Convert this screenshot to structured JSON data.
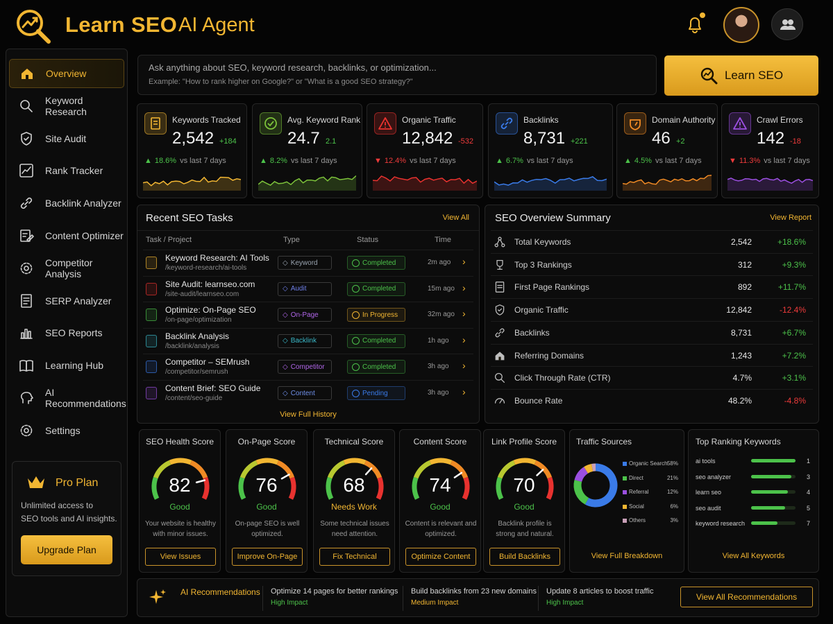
{
  "header": {
    "title_bold": "Learn SEO",
    "title_light": "AI Agent"
  },
  "sidebar": {
    "items": [
      {
        "label": "Overview",
        "icon": "home-icon"
      },
      {
        "label": "Keyword Research",
        "icon": "search-icon"
      },
      {
        "label": "Site Audit",
        "icon": "shield-icon"
      },
      {
        "label": "Rank Tracker",
        "icon": "chart-icon"
      },
      {
        "label": "Backlink Analyzer",
        "icon": "link-icon"
      },
      {
        "label": "Content Optimizer",
        "icon": "edit-icon"
      },
      {
        "label": "Competitor Analysis",
        "icon": "gear-icon"
      },
      {
        "label": "SERP Analyzer",
        "icon": "document-icon"
      },
      {
        "label": "SEO Reports",
        "icon": "report-icon"
      },
      {
        "label": "Learning Hub",
        "icon": "book-icon"
      },
      {
        "label": "AI Recommendations",
        "icon": "brain-icon"
      },
      {
        "label": "Settings",
        "icon": "settings-icon"
      }
    ],
    "pro": {
      "title": "Pro Plan",
      "desc1": "Unlimited access to",
      "desc2": "SEO tools and AI insights.",
      "button": "Upgrade Plan"
    }
  },
  "search": {
    "placeholder": "Ask anything about SEO, keyword research, backlinks, or optimization...",
    "example": "Example: \"How to rank higher on Google?\" or \"What is a good SEO strategy?\"",
    "button": "Learn SEO"
  },
  "stats": [
    {
      "label": "Keywords Tracked",
      "value": "2,542",
      "delta": "+184",
      "pct": "18.6%",
      "up": true,
      "period": "vs last 7 days",
      "color": "#f2b632"
    },
    {
      "label": "Avg. Keyword Rank",
      "value": "24.7",
      "delta": "2.1",
      "pct": "8.2%",
      "up": true,
      "period": "vs last 7 days",
      "color": "#7cc23a"
    },
    {
      "label": "Organic Traffic",
      "value": "12,842",
      "delta": "-532",
      "pct": "12.4%",
      "up": false,
      "period": "vs last 7 days",
      "color": "#e8322f"
    },
    {
      "label": "Backlinks",
      "value": "8,731",
      "delta": "+221",
      "pct": "6.7%",
      "up": true,
      "period": "vs last 7 days",
      "color": "#3a7be8"
    },
    {
      "label": "Domain Authority",
      "value": "46",
      "delta": "+2",
      "pct": "4.5%",
      "up": true,
      "period": "vs last 7 days",
      "color": "#f08a24"
    },
    {
      "label": "Crawl Errors",
      "value": "142",
      "delta": "-18",
      "pct": "11.3%",
      "up": false,
      "period": "vs last 7 days",
      "color": "#9b4fe0"
    }
  ],
  "tasks": {
    "title": "Recent SEO Tasks",
    "view_all": "View All",
    "headers": {
      "task": "Task / Project",
      "type": "Type",
      "status": "Status",
      "time": "Time"
    },
    "rows": [
      {
        "name": "Keyword Research: AI Tools",
        "path": "/keyword-research/ai-tools",
        "type": "Keyword",
        "status": "Completed",
        "time": "2m ago",
        "color": "#f2b632"
      },
      {
        "name": "Site Audit: learnseo.com",
        "path": "/site-audit/learnseo.com",
        "type": "Audit",
        "status": "Completed",
        "time": "15m ago",
        "color": "#e8322f"
      },
      {
        "name": "Optimize: On-Page SEO",
        "path": "/on-page/optimization",
        "type": "On-Page",
        "status": "In Progress",
        "time": "32m ago",
        "color": "#4cc24a"
      },
      {
        "name": "Backlink Analysis",
        "path": "/backlink/analysis",
        "type": "Backlink",
        "status": "Completed",
        "time": "1h ago",
        "color": "#3ab8c8"
      },
      {
        "name": "Competitor – SEMrush",
        "path": "/competitor/semrush",
        "type": "Competitor",
        "status": "Completed",
        "time": "3h ago",
        "color": "#3a7be8"
      },
      {
        "name": "Content Brief: SEO Guide",
        "path": "/content/seo-guide",
        "type": "Content",
        "status": "Pending",
        "time": "3h ago",
        "color": "#9b4fe0"
      }
    ],
    "history": "View Full History"
  },
  "summary": {
    "title": "SEO Overview Summary",
    "view": "View Report",
    "rows": [
      {
        "label": "Total Keywords",
        "value": "2,542",
        "change": "+18.6%",
        "up": true,
        "icon": "network-icon"
      },
      {
        "label": "Top 3 Rankings",
        "value": "312",
        "change": "+9.3%",
        "up": true,
        "icon": "trophy-icon"
      },
      {
        "label": "First Page Rankings",
        "value": "892",
        "change": "+11.7%",
        "up": true,
        "icon": "page-icon"
      },
      {
        "label": "Organic Traffic",
        "value": "12,842",
        "change": "-12.4%",
        "up": false,
        "icon": "shield-check-icon"
      },
      {
        "label": "Backlinks",
        "value": "8,731",
        "change": "+6.7%",
        "up": true,
        "icon": "link-icon"
      },
      {
        "label": "Referring Domains",
        "value": "1,243",
        "change": "+7.2%",
        "up": true,
        "icon": "home-icon"
      },
      {
        "label": "Click Through Rate (CTR)",
        "value": "4.7%",
        "change": "+3.1%",
        "up": true,
        "icon": "search-icon"
      },
      {
        "label": "Bounce Rate",
        "value": "48.2%",
        "change": "-4.8%",
        "up": false,
        "icon": "gauge-icon"
      }
    ]
  },
  "scores": [
    {
      "title": "SEO Health Score",
      "value": "82",
      "pct": 0.82,
      "quality": "Good",
      "qcolor": "#4cc24a",
      "desc": "Your website is healthy with minor issues.",
      "button": "View Issues"
    },
    {
      "title": "On-Page Score",
      "value": "76",
      "pct": 0.76,
      "quality": "Good",
      "qcolor": "#4cc24a",
      "desc": "On-page SEO is well optimized.",
      "button": "Improve On-Page"
    },
    {
      "title": "Technical Score",
      "value": "68",
      "pct": 0.68,
      "quality": "Needs Work",
      "qcolor": "#f2b632",
      "desc": "Some technical issues need attention.",
      "button": "Fix Technical"
    },
    {
      "title": "Content Score",
      "value": "74",
      "pct": 0.74,
      "quality": "Good",
      "qcolor": "#4cc24a",
      "desc": "Content is relevant and optimized.",
      "button": "Optimize Content"
    },
    {
      "title": "Link Profile Score",
      "value": "70",
      "pct": 0.7,
      "quality": "Good",
      "qcolor": "#4cc24a",
      "desc": "Backlink profile is strong and natural.",
      "button": "Build Backlinks"
    }
  ],
  "traffic": {
    "title": "Traffic Sources",
    "link": "View Full Breakdown",
    "sources": [
      {
        "name": "Organic Search",
        "pct": "58%",
        "value": 58,
        "color": "#3a7be8"
      },
      {
        "name": "Direct",
        "pct": "21%",
        "value": 21,
        "color": "#4cc24a"
      },
      {
        "name": "Referral",
        "pct": "12%",
        "value": 12,
        "color": "#9b4fe0"
      },
      {
        "name": "Social",
        "pct": "6%",
        "value": 6,
        "color": "#f2b632"
      },
      {
        "name": "Others",
        "pct": "3%",
        "value": 3,
        "color": "#c9a0b8"
      }
    ]
  },
  "top_keywords": {
    "title": "Top Ranking Keywords",
    "link": "View All Keywords",
    "rows": [
      {
        "kw": "ai tools",
        "rank": "1",
        "bar": 1.0
      },
      {
        "kw": "seo analyzer",
        "rank": "3",
        "bar": 0.9
      },
      {
        "kw": "learn seo",
        "rank": "4",
        "bar": 0.82
      },
      {
        "kw": "seo audit",
        "rank": "5",
        "bar": 0.76
      },
      {
        "kw": "keyword research",
        "rank": "7",
        "bar": 0.6
      }
    ]
  },
  "reco": {
    "title": "AI Recommendations",
    "items": [
      {
        "text": "Optimize 14 pages for better rankings",
        "impact": "High Impact"
      },
      {
        "text": "Build backlinks from 23 new domains",
        "impact": "Medium Impact"
      },
      {
        "text": "Update 8 articles to boost traffic",
        "impact": "High Impact"
      }
    ],
    "button": "View All Recommendations"
  }
}
